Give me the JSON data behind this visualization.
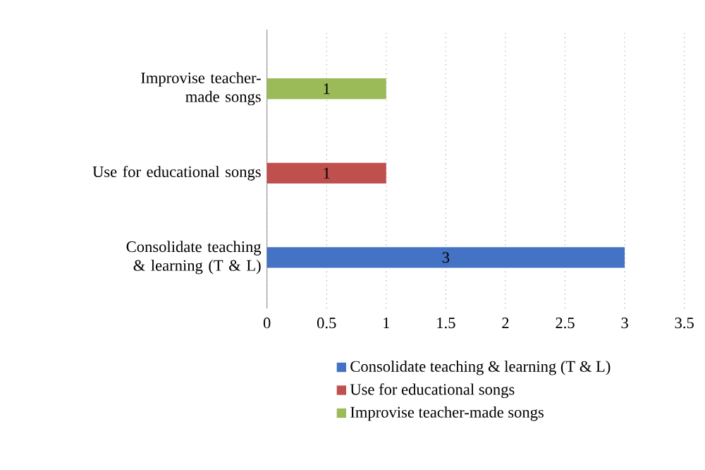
{
  "chart_data": {
    "type": "bar",
    "orientation": "horizontal",
    "categories": [
      "Improvise teacher-made songs",
      "Use for educational songs",
      "Consolidate teaching & learning (T & L)"
    ],
    "series": [
      {
        "name": "Consolidate teaching & learning (T & L)",
        "color": "#4472c4",
        "values": [
          null,
          null,
          3
        ]
      },
      {
        "name": "Use for educational songs",
        "color": "#c0504d",
        "values": [
          null,
          1,
          null
        ]
      },
      {
        "name": "Improvise teacher-made songs",
        "color": "#9bbb59",
        "values": [
          1,
          null,
          null
        ]
      }
    ],
    "xlim": [
      0,
      3.5
    ],
    "xticks": [
      0,
      0.5,
      1,
      1.5,
      2,
      2.5,
      3,
      3.5
    ],
    "grid": "x",
    "legend": "bottom",
    "data_labels": true
  }
}
